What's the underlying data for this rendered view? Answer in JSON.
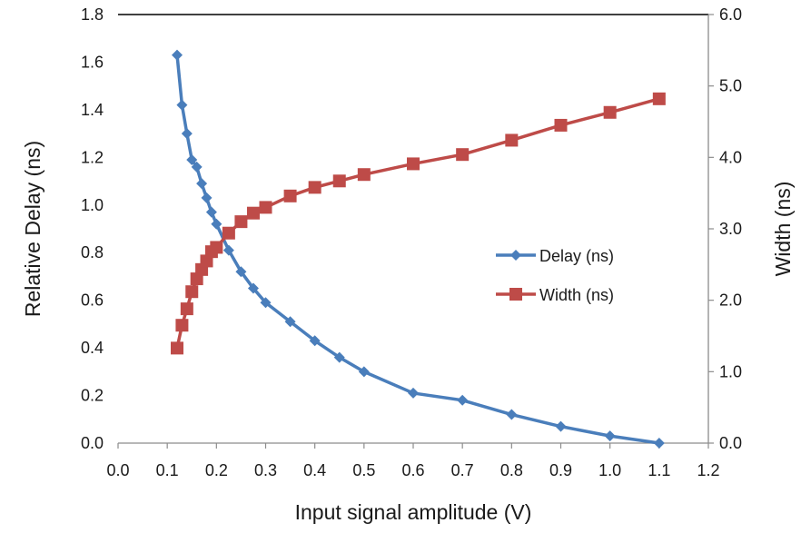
{
  "chart_data": {
    "type": "line",
    "xlabel": "Input signal amplitude (V)",
    "ylabel": "Relative Delay (ns)",
    "y2label": "Width (ns)",
    "xlim": [
      0.0,
      1.2
    ],
    "ylim": [
      0.0,
      1.8
    ],
    "y2lim": [
      0.0,
      6.0
    ],
    "x_ticks": [
      "0.0",
      "0.1",
      "0.2",
      "0.3",
      "0.4",
      "0.5",
      "0.6",
      "0.7",
      "0.8",
      "0.9",
      "1.0",
      "1.1",
      "1.2"
    ],
    "y_ticks": [
      "0.0",
      "0.2",
      "0.4",
      "0.6",
      "0.8",
      "1.0",
      "1.2",
      "1.4",
      "1.6",
      "1.8"
    ],
    "y2_ticks": [
      "0.0",
      "1.0",
      "2.0",
      "3.0",
      "4.0",
      "5.0",
      "6.0"
    ],
    "legend_position": "right",
    "series": [
      {
        "name": "Delay (ns)",
        "axis": "left",
        "color": "#4a7ebb",
        "marker": "diamond",
        "x": [
          0.12,
          0.13,
          0.14,
          0.15,
          0.16,
          0.17,
          0.18,
          0.19,
          0.2,
          0.225,
          0.25,
          0.275,
          0.3,
          0.35,
          0.4,
          0.45,
          0.5,
          0.6,
          0.7,
          0.8,
          0.9,
          1.0,
          1.1
        ],
        "y": [
          1.63,
          1.42,
          1.3,
          1.19,
          1.16,
          1.09,
          1.03,
          0.97,
          0.92,
          0.81,
          0.72,
          0.65,
          0.59,
          0.51,
          0.43,
          0.36,
          0.3,
          0.21,
          0.18,
          0.12,
          0.07,
          0.03,
          0.0
        ]
      },
      {
        "name": "Width (ns)",
        "axis": "right",
        "color": "#be4b48",
        "marker": "square",
        "x": [
          0.12,
          0.13,
          0.14,
          0.15,
          0.16,
          0.17,
          0.18,
          0.19,
          0.2,
          0.225,
          0.25,
          0.275,
          0.3,
          0.35,
          0.4,
          0.45,
          0.5,
          0.6,
          0.7,
          0.8,
          0.9,
          1.0,
          1.1
        ],
        "y": [
          1.33,
          1.65,
          1.88,
          2.12,
          2.3,
          2.43,
          2.55,
          2.68,
          2.74,
          2.94,
          3.1,
          3.22,
          3.3,
          3.46,
          3.58,
          3.67,
          3.76,
          3.91,
          4.04,
          4.24,
          4.45,
          4.63,
          4.82
        ]
      }
    ]
  }
}
